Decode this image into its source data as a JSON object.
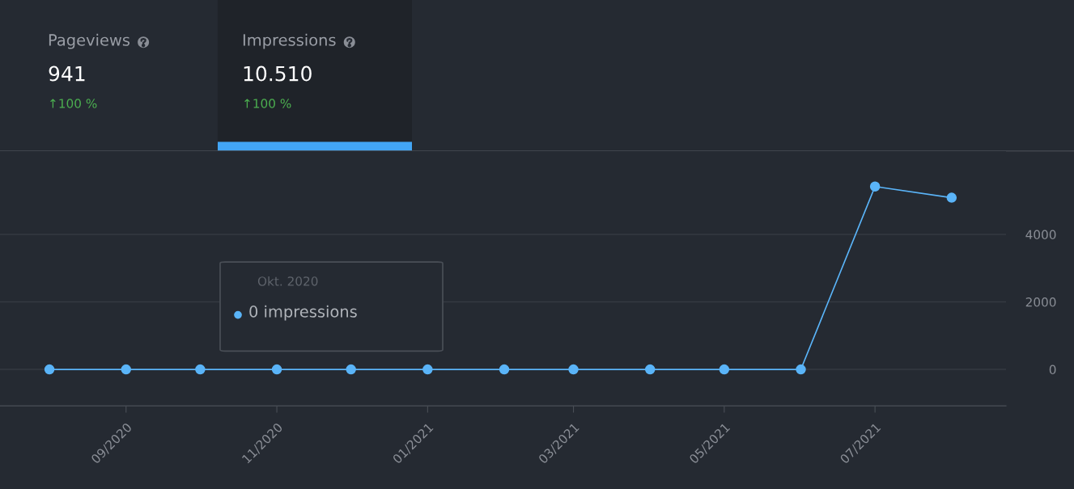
{
  "chart_data": [
    {
      "type": "other",
      "annotations": [
        "Pageviews",
        "941",
        "↑100 %",
        "Impressions",
        "10.510",
        "↑100 %"
      ]
    },
    {
      "type": "line",
      "x": [
        "2020-08-01",
        "2020-09-01",
        "2020-10-01",
        "2020-11-01",
        "2020-12-01",
        "2021-01-01",
        "2021-02-01",
        "2021-03-01",
        "2021-04-01",
        "2021-05-01",
        "2021-06-01",
        "2021-07-01",
        "2021-08-01"
      ],
      "series": [
        {
          "color": "#5ab4f8",
          "values": [
            0,
            0,
            0,
            0,
            0,
            0,
            0,
            0,
            0,
            0,
            0,
            5420,
            5090
          ]
        }
      ],
      "xlim": [
        "2020-07-12",
        "2021-08-23"
      ],
      "xticks": [
        {
          "value": "2020-09-01",
          "label": "09/2020"
        },
        {
          "value": "2020-11-01",
          "label": "11/2020"
        },
        {
          "value": "2021-01-01",
          "label": "01/2021"
        },
        {
          "value": "2021-03-01",
          "label": "03/2021"
        },
        {
          "value": "2021-05-01",
          "label": "05/2021"
        },
        {
          "value": "2021-07-01",
          "label": "07/2021"
        }
      ],
      "ylim": [
        -1080,
        6470
      ],
      "yticks": [
        0,
        2000,
        4000
      ],
      "grid": "y",
      "marker": "circle",
      "line_style": "solid",
      "annotations": [
        "Okt. 2020",
        "0 impressions"
      ]
    }
  ]
}
